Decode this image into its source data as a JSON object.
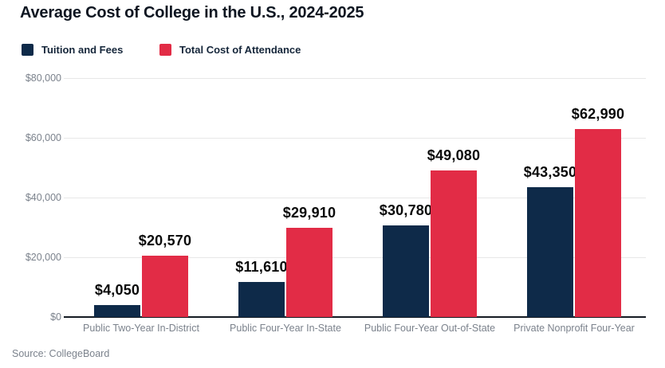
{
  "title": "Average Cost of College in the U.S., 2024-2025",
  "source": "Source: CollegeBoard",
  "legend": {
    "items": [
      {
        "label": "Tuition and Fees",
        "color": "#0e2a49"
      },
      {
        "label": "Total Cost of Attendance",
        "color": "#e22c46"
      }
    ]
  },
  "chart_data": {
    "type": "bar",
    "title": "Average Cost of College in the U.S., 2024-2025",
    "categories": [
      "Public Two-Year In-District",
      "Public Four-Year In-State",
      "Public Four-Year Out-of-State",
      "Private Nonprofit Four-Year"
    ],
    "series": [
      {
        "name": "Tuition and Fees",
        "color": "#0e2a49",
        "values": [
          4050,
          11610,
          30780,
          43350
        ],
        "labels": [
          "$4,050",
          "$11,610",
          "$30,780",
          "$43,350"
        ]
      },
      {
        "name": "Total Cost of Attendance",
        "color": "#e22c46",
        "values": [
          20570,
          29910,
          49080,
          62990
        ],
        "labels": [
          "$20,570",
          "$29,910",
          "$49,080",
          "$62,990"
        ]
      }
    ],
    "xlabel": "",
    "ylabel": "",
    "ylim": [
      0,
      80000
    ],
    "yticks": [
      {
        "value": 0,
        "label": "$0"
      },
      {
        "value": 20000,
        "label": "$20,000"
      },
      {
        "value": 40000,
        "label": "$40,000"
      },
      {
        "value": 60000,
        "label": "$60,000"
      },
      {
        "value": 80000,
        "label": "$80,000"
      }
    ],
    "grid": true,
    "legend_position": "top-left"
  },
  "colors": {
    "navy": "#0e2a49",
    "red": "#e22c46",
    "grid": "#e7e7e7",
    "axis": "#151b23",
    "muted_text": "#7b828c",
    "title_text": "#0e1621"
  }
}
